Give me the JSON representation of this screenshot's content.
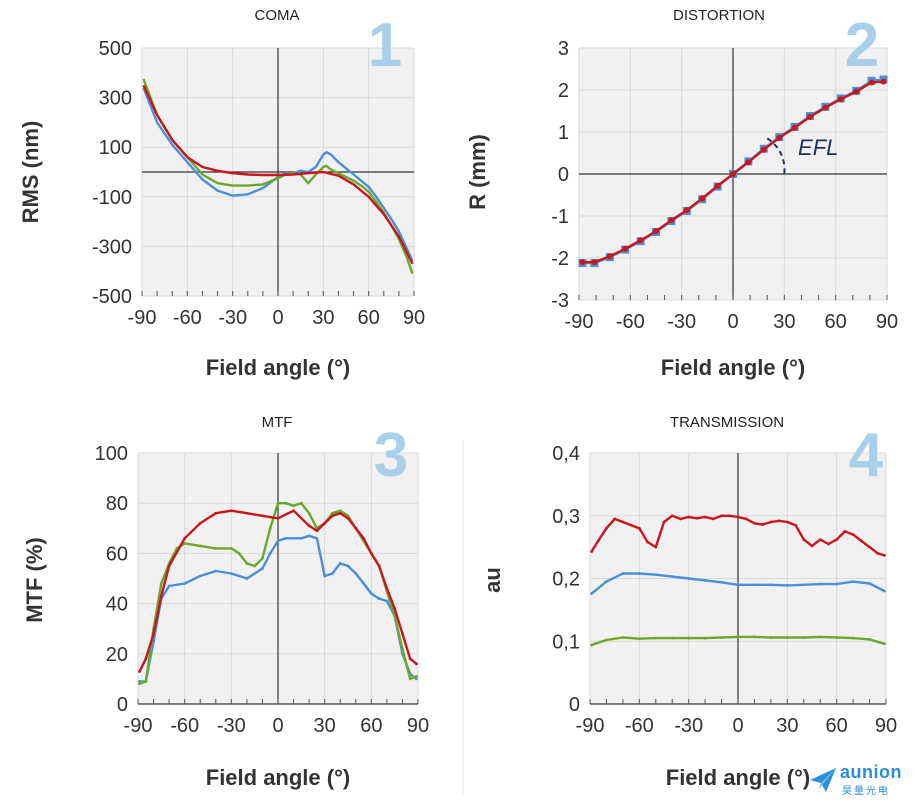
{
  "colors": {
    "blue": "#4a90d9",
    "green": "#6aa82c",
    "red": "#c8161d",
    "panel_number": "#a9cfe9",
    "plot_bg": "#f1f1f1"
  },
  "logo": {
    "text": "aunion",
    "subtext": "昊量光电"
  },
  "chart_data": [
    {
      "type": "line",
      "title": "COMA",
      "panel_number": "1",
      "xlabel": "Field angle (°)",
      "ylabel": "RMS (nm)",
      "xlim": [
        -90,
        90
      ],
      "ylim": [
        -500,
        500
      ],
      "xticks": [
        "-90",
        "-60",
        "-30",
        "0",
        "30",
        "60",
        "90"
      ],
      "xtick_values": [
        -90,
        -60,
        -30,
        0,
        30,
        60,
        90
      ],
      "yticks": [
        "500",
        "300",
        "100",
        "-100",
        "-300",
        "-500"
      ],
      "ytick_values": [
        500,
        300,
        100,
        -100,
        -300,
        -500
      ],
      "series": [
        {
          "color_key": "blue",
          "x": [
            -89,
            -80,
            -70,
            -60,
            -50,
            -40,
            -30,
            -20,
            -10,
            0,
            5,
            10,
            15,
            20,
            25,
            30,
            32,
            35,
            40,
            45,
            50,
            55,
            60,
            65,
            70,
            75,
            80,
            85,
            89
          ],
          "y": [
            340,
            200,
            110,
            40,
            -30,
            -75,
            -95,
            -90,
            -65,
            -20,
            -5,
            -5,
            5,
            0,
            20,
            70,
            80,
            70,
            40,
            15,
            -10,
            -35,
            -60,
            -100,
            -145,
            -190,
            -240,
            -305,
            -360
          ]
        },
        {
          "color_key": "green",
          "x": [
            -89,
            -80,
            -70,
            -60,
            -50,
            -40,
            -30,
            -20,
            -10,
            0,
            5,
            10,
            15,
            20,
            25,
            30,
            32,
            35,
            40,
            45,
            50,
            55,
            60,
            65,
            70,
            75,
            80,
            85,
            89
          ],
          "y": [
            375,
            230,
            130,
            60,
            -10,
            -45,
            -55,
            -55,
            -50,
            -25,
            -10,
            -5,
            -10,
            -45,
            -10,
            20,
            25,
            10,
            -5,
            -20,
            -35,
            -55,
            -80,
            -120,
            -165,
            -215,
            -270,
            -340,
            -410
          ]
        },
        {
          "color_key": "red",
          "x": [
            -89,
            -80,
            -70,
            -60,
            -50,
            -40,
            -30,
            -20,
            -10,
            0,
            10,
            20,
            30,
            40,
            50,
            60,
            70,
            80,
            89
          ],
          "y": [
            350,
            230,
            130,
            60,
            20,
            5,
            -5,
            -10,
            -12,
            -12,
            -10,
            -5,
            0,
            -15,
            -50,
            -100,
            -170,
            -260,
            -370
          ]
        }
      ]
    },
    {
      "type": "scatter",
      "title": "DISTORTION",
      "panel_number": "2",
      "xlabel": "Field angle (°)",
      "ylabel": "R (mm)",
      "xlim": [
        -90,
        90
      ],
      "ylim": [
        -3,
        3
      ],
      "xticks": [
        "-90",
        "-60",
        "-30",
        "0",
        "30",
        "60",
        "90"
      ],
      "xtick_values": [
        -90,
        -60,
        -30,
        0,
        30,
        60,
        90
      ],
      "yticks": [
        "3",
        "2",
        "1",
        "0",
        "-1",
        "-2",
        "-3"
      ],
      "ytick_values": [
        3,
        2,
        1,
        0,
        -1,
        -2,
        -3
      ],
      "annotation": "EFL",
      "series": [
        {
          "color_key": "blue",
          "marker": "square",
          "x": [
            -88,
            -81,
            -72,
            -63,
            -54,
            -45,
            -36,
            -27,
            -18,
            -9,
            0,
            9,
            18,
            27,
            36,
            45,
            54,
            63,
            72,
            81,
            88
          ],
          "y": [
            -2.12,
            -2.12,
            -1.98,
            -1.8,
            -1.6,
            -1.38,
            -1.12,
            -0.88,
            -0.6,
            -0.3,
            0,
            0.3,
            0.6,
            0.88,
            1.12,
            1.38,
            1.6,
            1.8,
            1.98,
            2.22,
            2.25
          ]
        },
        {
          "color_key": "red",
          "marker": "circle",
          "x": [
            -88,
            -81,
            -72,
            -63,
            -54,
            -45,
            -36,
            -27,
            -18,
            -9,
            0,
            9,
            18,
            27,
            36,
            45,
            54,
            63,
            72,
            81,
            88
          ],
          "y": [
            -2.1,
            -2.1,
            -1.96,
            -1.78,
            -1.58,
            -1.36,
            -1.1,
            -0.86,
            -0.58,
            -0.28,
            0,
            0.28,
            0.58,
            0.86,
            1.1,
            1.36,
            1.58,
            1.78,
            1.96,
            2.18,
            2.2
          ]
        }
      ]
    },
    {
      "type": "line",
      "title": "MTF",
      "panel_number": "3",
      "xlabel": "Field angle (°)",
      "ylabel": "MTF (%)",
      "xlim": [
        -90,
        90
      ],
      "ylim": [
        0,
        100
      ],
      "xticks": [
        "-90",
        "-60",
        "-30",
        "0",
        "30",
        "60",
        "90"
      ],
      "xtick_values": [
        -90,
        -60,
        -30,
        0,
        30,
        60,
        90
      ],
      "yticks": [
        "100",
        "80",
        "60",
        "40",
        "20",
        "0"
      ],
      "ytick_values": [
        100,
        80,
        60,
        40,
        20,
        0
      ],
      "series": [
        {
          "color_key": "blue",
          "x": [
            -89,
            -85,
            -80,
            -75,
            -70,
            -60,
            -50,
            -40,
            -30,
            -20,
            -10,
            -5,
            0,
            5,
            10,
            15,
            20,
            25,
            30,
            35,
            40,
            45,
            50,
            55,
            60,
            65,
            70,
            75,
            80,
            85,
            89
          ],
          "y": [
            9,
            9,
            25,
            42,
            47,
            48,
            51,
            53,
            52,
            50,
            54,
            60,
            65,
            66,
            66,
            66,
            67,
            66,
            51,
            52,
            56,
            55,
            52,
            48,
            44,
            42,
            41,
            35,
            20,
            12,
            10
          ]
        },
        {
          "color_key": "green",
          "x": [
            -89,
            -85,
            -80,
            -75,
            -70,
            -65,
            -60,
            -50,
            -40,
            -30,
            -25,
            -20,
            -15,
            -10,
            -5,
            0,
            5,
            10,
            15,
            20,
            25,
            30,
            35,
            40,
            45,
            50,
            55,
            60,
            65,
            70,
            75,
            80,
            85,
            89
          ],
          "y": [
            8,
            9,
            30,
            48,
            56,
            62,
            64,
            63,
            62,
            62,
            60,
            56,
            55,
            58,
            70,
            80,
            80,
            79,
            80,
            76,
            70,
            72,
            76,
            77,
            75,
            70,
            65,
            60,
            55,
            45,
            35,
            22,
            10,
            11
          ]
        },
        {
          "color_key": "red",
          "x": [
            -89,
            -85,
            -80,
            -75,
            -70,
            -60,
            -50,
            -40,
            -30,
            -20,
            -10,
            0,
            10,
            20,
            25,
            30,
            35,
            40,
            45,
            50,
            55,
            60,
            65,
            70,
            75,
            80,
            85,
            89
          ],
          "y": [
            13,
            18,
            28,
            43,
            55,
            66,
            72,
            76,
            77,
            76,
            75,
            74,
            77,
            71,
            69,
            72,
            75,
            76,
            74,
            70,
            66,
            60,
            55,
            46,
            38,
            28,
            18,
            16
          ]
        }
      ]
    },
    {
      "type": "line",
      "title": "TRANSMISSION",
      "panel_number": "4",
      "xlabel": "Field angle (°)",
      "ylabel": "au",
      "xlim": [
        -90,
        90
      ],
      "ylim": [
        0,
        0.4
      ],
      "xticks": [
        "-90",
        "-60",
        "-30",
        "0",
        "30",
        "60",
        "90"
      ],
      "xtick_values": [
        -90,
        -60,
        -30,
        0,
        30,
        60,
        90
      ],
      "yticks": [
        "0,4",
        "0,3",
        "0,2",
        "0,1",
        "0"
      ],
      "ytick_values": [
        0.4,
        0.3,
        0.2,
        0.1,
        0
      ],
      "series": [
        {
          "color_key": "red",
          "x": [
            -89,
            -85,
            -80,
            -75,
            -70,
            -65,
            -60,
            -55,
            -50,
            -45,
            -40,
            -35,
            -30,
            -25,
            -20,
            -15,
            -10,
            -5,
            0,
            5,
            10,
            15,
            20,
            25,
            30,
            35,
            40,
            45,
            50,
            55,
            60,
            65,
            70,
            75,
            80,
            85,
            89
          ],
          "y": [
            0.243,
            0.26,
            0.28,
            0.295,
            0.29,
            0.285,
            0.28,
            0.258,
            0.25,
            0.29,
            0.3,
            0.295,
            0.298,
            0.296,
            0.298,
            0.295,
            0.3,
            0.3,
            0.298,
            0.295,
            0.288,
            0.286,
            0.29,
            0.292,
            0.29,
            0.285,
            0.262,
            0.252,
            0.262,
            0.255,
            0.262,
            0.275,
            0.27,
            0.26,
            0.25,
            0.24,
            0.237
          ]
        },
        {
          "color_key": "blue",
          "x": [
            -89,
            -80,
            -70,
            -60,
            -50,
            -40,
            -30,
            -20,
            -10,
            0,
            10,
            20,
            30,
            40,
            50,
            60,
            70,
            80,
            89
          ],
          "y": [
            0.176,
            0.195,
            0.208,
            0.208,
            0.206,
            0.203,
            0.2,
            0.197,
            0.194,
            0.19,
            0.19,
            0.19,
            0.189,
            0.19,
            0.191,
            0.191,
            0.195,
            0.192,
            0.18
          ]
        },
        {
          "color_key": "green",
          "x": [
            -89,
            -80,
            -70,
            -60,
            -50,
            -40,
            -30,
            -20,
            -10,
            0,
            10,
            20,
            30,
            40,
            50,
            60,
            70,
            80,
            89
          ],
          "y": [
            0.094,
            0.102,
            0.106,
            0.104,
            0.105,
            0.105,
            0.105,
            0.105,
            0.106,
            0.107,
            0.107,
            0.106,
            0.106,
            0.106,
            0.107,
            0.106,
            0.105,
            0.103,
            0.096
          ]
        }
      ]
    }
  ]
}
